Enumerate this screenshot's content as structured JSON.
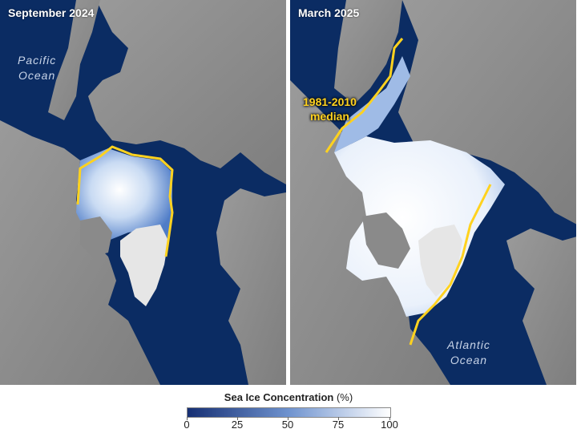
{
  "panels": [
    {
      "title": "September 2024",
      "ocean_label": [
        "Pacific",
        "Ocean"
      ]
    },
    {
      "title": "March 2025",
      "ocean_label": [
        "Atlantic",
        "Ocean"
      ],
      "median_label": [
        "1981-2010",
        "median"
      ]
    }
  ],
  "legend": {
    "title": "Sea Ice Concentration",
    "unit": "(%)",
    "ticks": [
      "0",
      "25",
      "50",
      "75",
      "100"
    ],
    "color_low": "#162f73",
    "color_mid": "#6f93cf",
    "color_high": "#ffffff"
  },
  "colors": {
    "ocean": "#0b2c63",
    "land": "#8f8f8f",
    "median_line": "#ffd21f"
  }
}
